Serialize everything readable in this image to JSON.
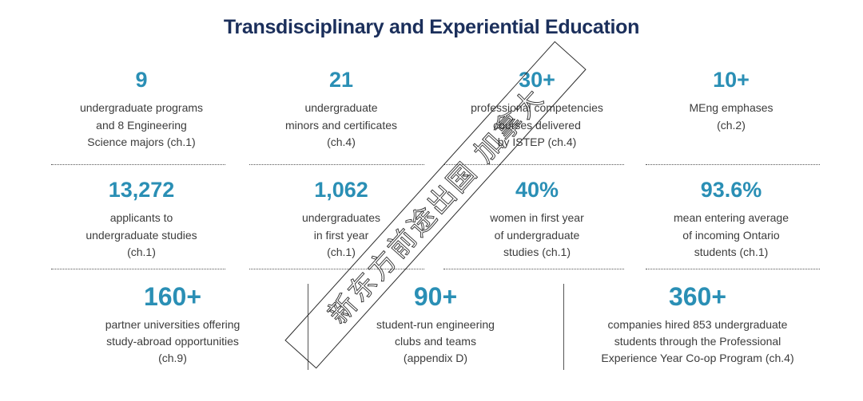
{
  "title": "Transdisciplinary and Experiential Education",
  "stats": [
    {
      "value": "9",
      "text": "undergraduate programs\nand 8 Engineering\nScience majors (ch.1)"
    },
    {
      "value": "21",
      "text": "undergraduate\nminors and certificates\n(ch.4)"
    },
    {
      "value": "30+",
      "text": "professional competencies\ncourses delivered\nby ISTEP (ch.4)"
    },
    {
      "value": "10+",
      "text": "MEng emphases\n(ch.2)"
    },
    {
      "value": "13,272",
      "text": "applicants to\nundergraduate studies\n(ch.1)"
    },
    {
      "value": "1,062",
      "text": "undergraduates\nin first year\n(ch.1)"
    },
    {
      "value": "40%",
      "text": "women in first year\nof undergraduate\nstudies (ch.1)"
    },
    {
      "value": "93.6%",
      "text": "mean entering average\nof incoming Ontario\nstudents (ch.1)"
    },
    {
      "value": "160+",
      "text": "partner universities offering\nstudy-abroad opportunities\n(ch.9)"
    },
    {
      "value": "90+",
      "text": "student-run engineering\nclubs and teams\n(appendix D)"
    },
    {
      "value": "360+",
      "text": "companies hired 853 undergraduate\nstudents through the Professional\nExperience Year Co-op Program (ch.4)"
    }
  ],
  "watermark": {
    "text": "新东方前途出国 加拿大"
  },
  "colors": {
    "title": "#1b2f5b",
    "accent": "#2a8fb5",
    "body_text": "#3c3c3c"
  }
}
